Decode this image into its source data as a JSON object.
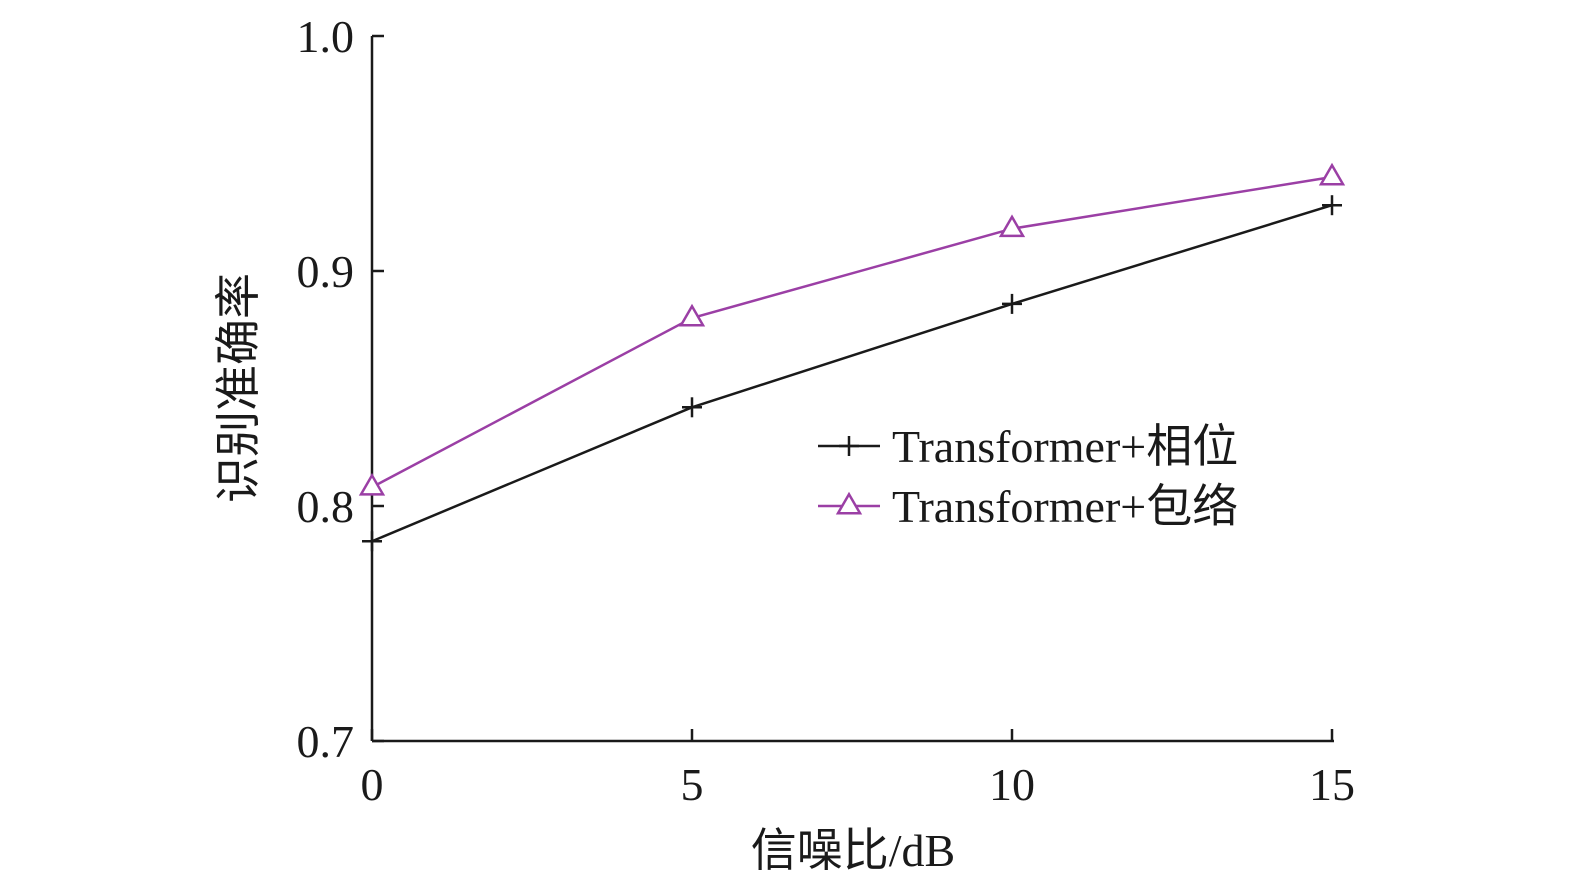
{
  "chart_data": {
    "type": "line",
    "xlabel": "信噪比/dB",
    "ylabel": "识别准确率",
    "x": [
      0,
      5,
      10,
      15
    ],
    "x_ticks": [
      "0",
      "5",
      "10",
      "15"
    ],
    "xlim": [
      0,
      15
    ],
    "y_ticks": [
      "0.7",
      "0.8",
      "0.9",
      "1.0"
    ],
    "ylim": [
      0.7,
      1.0
    ],
    "grid": false,
    "legend_position": "right-middle",
    "series": [
      {
        "name": "Transformer+相位",
        "values": [
          0.785,
          0.842,
          0.886,
          0.928
        ],
        "color": "#1a1a1a",
        "marker": "plus"
      },
      {
        "name": "Transformer+包络",
        "values": [
          0.808,
          0.88,
          0.918,
          0.94
        ],
        "color": "#9b3fa5",
        "marker": "triangle"
      }
    ]
  }
}
